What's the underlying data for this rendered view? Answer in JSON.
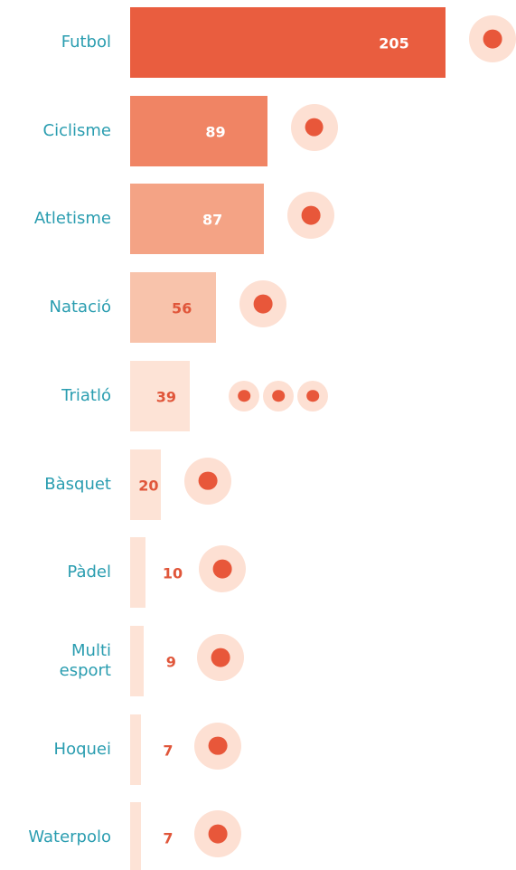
{
  "chart_data": {
    "type": "bar",
    "orientation": "horizontal",
    "categories": [
      "Futbol",
      "Ciclisme",
      "Atletisme",
      "Natació",
      "Triatló",
      "Bàsquet",
      "Pàdel",
      "Multi\nesport",
      "Hoquei",
      "Waterpolo"
    ],
    "values": [
      205,
      89,
      87,
      56,
      39,
      20,
      10,
      9,
      7,
      7
    ],
    "colors": [
      "#e95d3f",
      "#f08464",
      "#f4a385",
      "#f8c3ab",
      "#fde3d6",
      "#fde3d6",
      "#fde3d6",
      "#fde3d6",
      "#fde3d6",
      "#fde3d6"
    ],
    "label_colors": [
      "#ffffff",
      "#ffffff",
      "#ffffff",
      "#e0563a",
      "#e0563a",
      "#e0563a",
      "#e0563a",
      "#e0563a",
      "#e0563a",
      "#e0563a"
    ],
    "category_color": "#2a9db0",
    "xlim": [
      0,
      205
    ]
  }
}
